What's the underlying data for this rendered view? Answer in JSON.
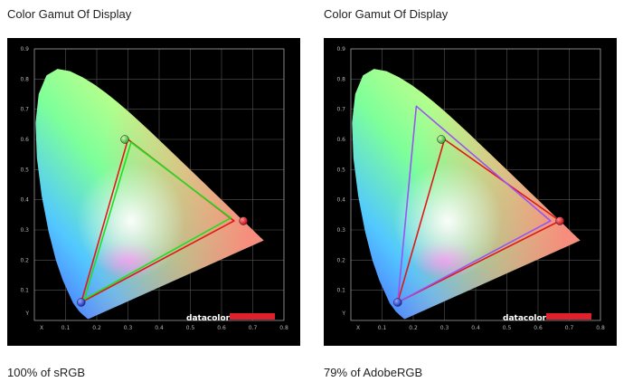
{
  "colors": {
    "background": "#000000",
    "grid": "#555555",
    "frame": "#9a9a9a",
    "tick_text": "#b4b4b4",
    "srgb_line": "#e01818",
    "srgb_coverage_line": "#22dd22",
    "adobe_line": "#9a55f0",
    "logo_bar": "#e0202a"
  },
  "logo": {
    "text": "datacolor",
    "icon": "datacolor-logo"
  },
  "chart_data": [
    {
      "type": "scatter",
      "title": "Color Gamut Of Display",
      "caption": "100% of sRGB",
      "xlabel": "X",
      "ylabel": "Y",
      "xlim": [
        0,
        0.8
      ],
      "ylim": [
        0,
        0.9
      ],
      "xticks": [
        "0.1",
        "0.2",
        "0.3",
        "0.4",
        "0.5",
        "0.6",
        "0.7",
        "0.8"
      ],
      "yticks": [
        "0.1",
        "0.2",
        "0.3",
        "0.4",
        "0.5",
        "0.6",
        "0.7",
        "0.8",
        "0.9"
      ],
      "grid": true,
      "background": "CIE 1931 chromaticity diagram",
      "series": [
        {
          "color": "#e01818",
          "closed": true,
          "x": [
            0.64,
            0.3,
            0.15
          ],
          "y": [
            0.33,
            0.6,
            0.06
          ]
        },
        {
          "color": "#22dd22",
          "closed": true,
          "x": [
            0.63,
            0.31,
            0.16
          ],
          "y": [
            0.34,
            0.59,
            0.07
          ]
        }
      ],
      "markers": [
        {
          "color": "red",
          "x": 0.67,
          "y": 0.33
        },
        {
          "color": "green",
          "x": 0.29,
          "y": 0.6
        },
        {
          "color": "blue",
          "x": 0.15,
          "y": 0.06
        }
      ]
    },
    {
      "type": "scatter",
      "title": "Color Gamut Of Display",
      "caption": "79% of AdobeRGB",
      "xlabel": "X",
      "ylabel": "Y",
      "xlim": [
        0,
        0.8
      ],
      "ylim": [
        0,
        0.9
      ],
      "xticks": [
        "0.1",
        "0.2",
        "0.3",
        "0.4",
        "0.5",
        "0.6",
        "0.7",
        "0.8"
      ],
      "yticks": [
        "0.1",
        "0.2",
        "0.3",
        "0.4",
        "0.5",
        "0.6",
        "0.7",
        "0.8",
        "0.9"
      ],
      "grid": true,
      "background": "CIE 1931 chromaticity diagram",
      "series": [
        {
          "color": "#e01818",
          "closed": true,
          "x": [
            0.67,
            0.3,
            0.15
          ],
          "y": [
            0.33,
            0.6,
            0.06
          ]
        },
        {
          "color": "#9a55f0",
          "closed": true,
          "x": [
            0.64,
            0.21,
            0.15
          ],
          "y": [
            0.33,
            0.71,
            0.06
          ]
        }
      ],
      "markers": [
        {
          "color": "red",
          "x": 0.67,
          "y": 0.33
        },
        {
          "color": "green",
          "x": 0.29,
          "y": 0.6
        },
        {
          "color": "blue",
          "x": 0.15,
          "y": 0.06
        }
      ]
    }
  ]
}
